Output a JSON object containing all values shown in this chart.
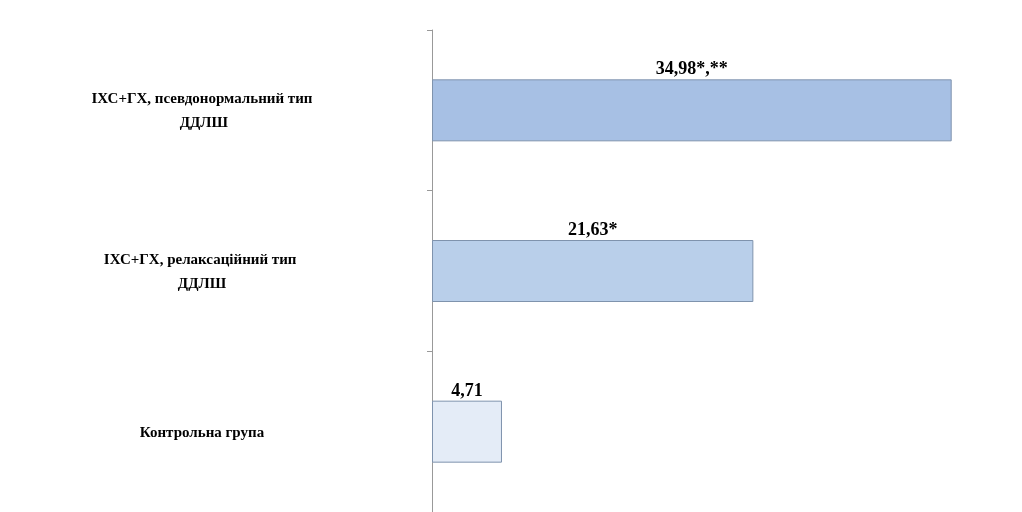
{
  "chart_data": {
    "type": "bar",
    "orientation": "horizontal",
    "categories": [
      "ІХС+ГХ, псевдонормальний тип ДДЛШ",
      "ІХС+ГХ, релаксаційний тип ДДЛШ",
      "Контрольна група"
    ],
    "values": [
      34.98,
      21.63,
      4.71
    ],
    "value_labels": [
      "34,98*,**",
      "21,63*",
      "4,71"
    ],
    "colors": [
      "#a7c0e4",
      "#b9cfea",
      "#e4ecf7"
    ]
  }
}
